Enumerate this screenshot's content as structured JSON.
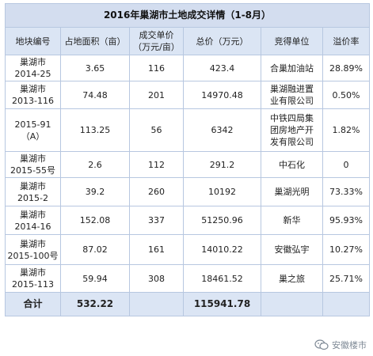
{
  "title": "2016年巢湖市土地成交详情（1-8月）",
  "headers": [
    {
      "line1": "地块编号",
      "line2": ""
    },
    {
      "line1": "占地面积（亩）",
      "line2": ""
    },
    {
      "line1": "成交单价",
      "line2": "（万元/亩）"
    },
    {
      "line1": "总价（万元）",
      "line2": ""
    },
    {
      "line1": "竞得单位",
      "line2": ""
    },
    {
      "line1": "溢价率",
      "line2": ""
    }
  ],
  "rows": [
    {
      "id_line1": "巢湖市",
      "id_line2": "2014-25",
      "area": "3.65",
      "unit_price": "116",
      "total": "423.4",
      "winner_line1": "合巢加油站",
      "winner_line2": "",
      "winner_line3": "",
      "premium": "28.89%"
    },
    {
      "id_line1": "巢湖市",
      "id_line2": "2013-116",
      "area": "74.48",
      "unit_price": "201",
      "total": "14970.48",
      "winner_line1": "巢湖融进置",
      "winner_line2": "业有限公司",
      "winner_line3": "",
      "premium": "0.50%"
    },
    {
      "id_line1": "2015-91",
      "id_line2": "（A）",
      "area": "113.25",
      "unit_price": "56",
      "total": "6342",
      "winner_line1": "中铁四局集",
      "winner_line2": "团房地产开",
      "winner_line3": "发有限公司",
      "premium": "1.82%"
    },
    {
      "id_line1": "巢湖市",
      "id_line2": "2015-55号",
      "area": "2.6",
      "unit_price": "112",
      "total": "291.2",
      "winner_line1": "中石化",
      "winner_line2": "",
      "winner_line3": "",
      "premium": "0"
    },
    {
      "id_line1": "巢湖市",
      "id_line2": "2015-2",
      "area": "39.2",
      "unit_price": "260",
      "total": "10192",
      "winner_line1": "巢湖光明",
      "winner_line2": "",
      "winner_line3": "",
      "premium": "73.33%"
    },
    {
      "id_line1": "巢湖市",
      "id_line2": "2014-16",
      "area": "152.08",
      "unit_price": "337",
      "total": "51250.96",
      "winner_line1": "新华",
      "winner_line2": "",
      "winner_line3": "",
      "premium": "95.93%"
    },
    {
      "id_line1": "巢湖市",
      "id_line2": "2015-100号",
      "area": "87.02",
      "unit_price": "161",
      "total": "14010.22",
      "winner_line1": "安徽弘宇",
      "winner_line2": "",
      "winner_line3": "",
      "premium": "10.27%"
    },
    {
      "id_line1": "巢湖市",
      "id_line2": "2015-113",
      "area": "59.94",
      "unit_price": "308",
      "total": "18461.52",
      "winner_line1": "巢之旅",
      "winner_line2": "",
      "winner_line3": "",
      "premium": "25.71%"
    }
  ],
  "total_row": {
    "label": "合计",
    "area": "532.22",
    "unit_price": "",
    "total": "115941.78",
    "winner": "",
    "premium": ""
  },
  "watermark": {
    "text": "安徽楼市",
    "icon": "wechat-icon"
  }
}
